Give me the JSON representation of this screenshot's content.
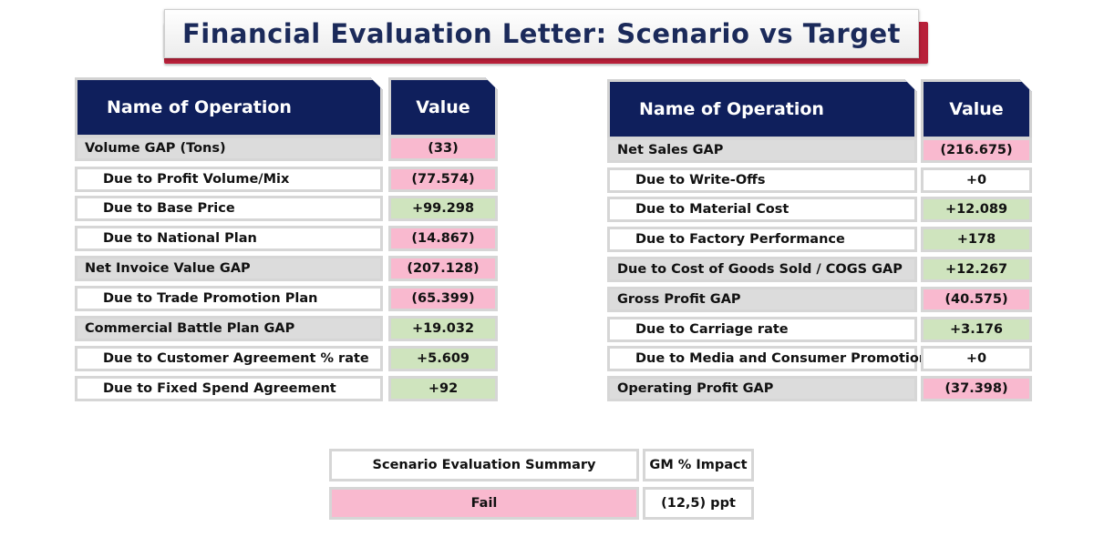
{
  "title": "Financial Evaluation Letter: Scenario vs Target",
  "colors": {
    "pink": "#f9b9cf",
    "green": "#cfe4be",
    "navy": "#0f1f5c",
    "accent": "#b8213a"
  },
  "left_table": {
    "header_name": "Name of Operation",
    "header_value": "Value",
    "rows": [
      {
        "name": "Volume GAP (Tons)",
        "value": "(33)",
        "level": "main",
        "status": "pink"
      },
      {
        "name": "Due to Profit Volume/Mix",
        "value": "(77.574)",
        "level": "sub",
        "status": "pink"
      },
      {
        "name": "Due to Base Price",
        "value": "+99.298",
        "level": "sub",
        "status": "green"
      },
      {
        "name": "Due to National Plan",
        "value": "(14.867)",
        "level": "sub",
        "status": "pink"
      },
      {
        "name": "Net Invoice Value GAP",
        "value": "(207.128)",
        "level": "main",
        "status": "pink"
      },
      {
        "name": "Due to Trade Promotion Plan",
        "value": "(65.399)",
        "level": "sub",
        "status": "pink"
      },
      {
        "name": "Commercial Battle Plan GAP",
        "value": "+19.032",
        "level": "main",
        "status": "green"
      },
      {
        "name": "Due to Customer Agreement % rate",
        "value": "+5.609",
        "level": "sub",
        "status": "green"
      },
      {
        "name": "Due to Fixed Spend Agreement",
        "value": "+92",
        "level": "sub",
        "status": "green"
      }
    ]
  },
  "right_table": {
    "header_name": "Name of Operation",
    "header_value": "Value",
    "rows": [
      {
        "name": "Net Sales GAP",
        "value": "(216.675)",
        "level": "main",
        "status": "pink"
      },
      {
        "name": "Due to Write-Offs",
        "value": "+0",
        "level": "sub",
        "status": "white"
      },
      {
        "name": "Due to Material Cost",
        "value": "+12.089",
        "level": "sub",
        "status": "green"
      },
      {
        "name": "Due to Factory Performance",
        "value": "+178",
        "level": "sub",
        "status": "green"
      },
      {
        "name": "Due to Cost of Goods Sold / COGS GAP",
        "value": "+12.267",
        "level": "main",
        "status": "green"
      },
      {
        "name": "Gross Profit GAP",
        "value": "(40.575)",
        "level": "main",
        "status": "pink"
      },
      {
        "name": "Due to Carriage rate",
        "value": "+3.176",
        "level": "sub",
        "status": "green"
      },
      {
        "name": "Due to Media and Consumer Promotion",
        "value": "+0",
        "level": "sub",
        "status": "white"
      },
      {
        "name": "Operating Profit GAP",
        "value": "(37.398)",
        "level": "main",
        "status": "pink"
      }
    ]
  },
  "summary": {
    "label_header": "Scenario Evaluation Summary",
    "impact_header": "GM % Impact",
    "result": "Fail",
    "impact_value": "(12,5) ppt",
    "result_status": "pink"
  }
}
